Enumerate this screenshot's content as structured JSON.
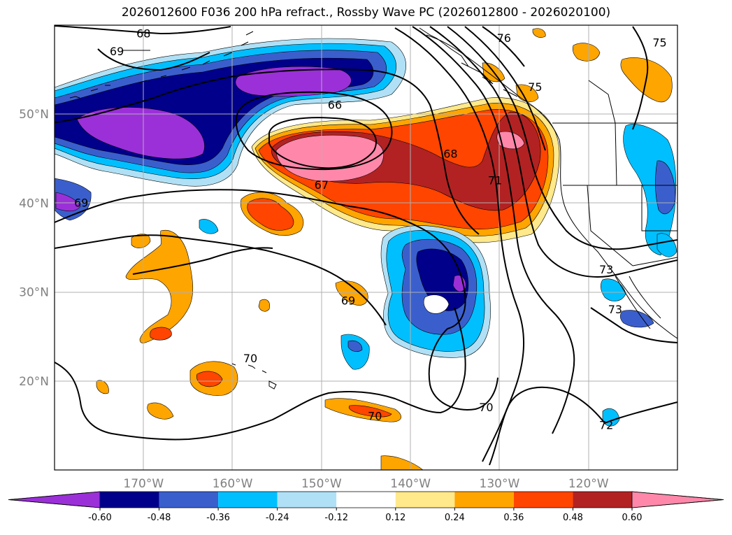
{
  "title": "2026012600 F036 200 hPa refract., Rossby Wave PC (2026012800 - 2026020100)",
  "map": {
    "projection": "PlateCarree",
    "lon_range": [
      -180,
      -110
    ],
    "lat_range": [
      10,
      60
    ],
    "gridlines": true
  },
  "axes": {
    "lat_ticks": [
      {
        "value": 50,
        "label": "50°N"
      },
      {
        "value": 40,
        "label": "40°N"
      },
      {
        "value": 30,
        "label": "30°N"
      },
      {
        "value": 20,
        "label": "20°N"
      }
    ],
    "lon_ticks": [
      {
        "value": -170,
        "label": "170°W"
      },
      {
        "value": -160,
        "label": "160°W"
      },
      {
        "value": -150,
        "label": "150°W"
      },
      {
        "value": -140,
        "label": "140°W"
      },
      {
        "value": -130,
        "label": "130°W"
      },
      {
        "value": -120,
        "label": "120°W"
      }
    ]
  },
  "colorbar": {
    "extend": "both",
    "colors": [
      "#9b30d9",
      "#00008b",
      "#3a5fcd",
      "#00bfff",
      "#b0e0f5",
      "#ffffff",
      "#ffe98a",
      "#ffa500",
      "#ff4500",
      "#b22222",
      "#ff88aa"
    ],
    "ticks": [
      "-0.60",
      "-0.48",
      "-0.36",
      "-0.24",
      "-0.12",
      "0.12",
      "0.24",
      "0.36",
      "0.48",
      "0.60"
    ]
  },
  "contour_labels": [
    {
      "text": "68",
      "lon": -170.0,
      "lat": 59.0
    },
    {
      "text": "69",
      "lon": -173.0,
      "lat": 57.0
    },
    {
      "text": "66",
      "lon": -148.5,
      "lat": 51.0
    },
    {
      "text": "67",
      "lon": -150.0,
      "lat": 42.0
    },
    {
      "text": "68",
      "lon": -135.5,
      "lat": 45.5
    },
    {
      "text": "71",
      "lon": -130.5,
      "lat": 42.5
    },
    {
      "text": "76",
      "lon": -129.5,
      "lat": 58.5
    },
    {
      "text": "75",
      "lon": -126.0,
      "lat": 53.0
    },
    {
      "text": "75",
      "lon": -112.0,
      "lat": 58.0
    },
    {
      "text": "69",
      "lon": -147.0,
      "lat": 29.0
    },
    {
      "text": "70",
      "lon": -158.0,
      "lat": 22.5
    },
    {
      "text": "70",
      "lon": -144.0,
      "lat": 16.0
    },
    {
      "text": "70",
      "lon": -131.5,
      "lat": 17.0
    },
    {
      "text": "72",
      "lon": -118.0,
      "lat": 15.0
    },
    {
      "text": "73",
      "lon": -118.0,
      "lat": 32.5
    },
    {
      "text": "73",
      "lon": -117.0,
      "lat": 28.0
    },
    {
      "text": "69",
      "lon": -177.0,
      "lat": 40.0
    }
  ]
}
